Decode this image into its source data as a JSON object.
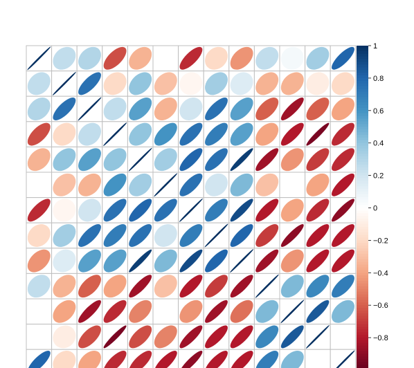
{
  "chart_data": {
    "type": "heatmap",
    "variant": "correlation-ellipse-matrix",
    "visible_rows": 13,
    "columns": 13,
    "diagonal_value": 1,
    "matrix": [
      [
        1.0,
        0.25,
        0.3,
        -0.65,
        -0.35,
        0.0,
        -0.75,
        -0.2,
        -0.45,
        0.25,
        0.05,
        0.35,
        0.8
      ],
      [
        0.25,
        1.0,
        0.75,
        -0.2,
        0.4,
        -0.3,
        -0.05,
        0.35,
        0.15,
        -0.35,
        -0.35,
        -0.1,
        -0.2
      ],
      [
        0.3,
        0.75,
        1.0,
        0.25,
        0.55,
        -0.35,
        0.2,
        0.75,
        0.55,
        -0.6,
        -0.85,
        -0.6,
        -0.4
      ],
      [
        -0.65,
        -0.2,
        0.25,
        1.0,
        0.4,
        0.6,
        0.75,
        0.7,
        0.55,
        -0.4,
        -0.8,
        -0.95,
        -0.75
      ],
      [
        -0.35,
        0.4,
        0.55,
        0.4,
        1.0,
        0.35,
        0.8,
        0.75,
        0.95,
        -0.85,
        -0.45,
        -0.7,
        -0.75
      ],
      [
        0.0,
        -0.3,
        -0.35,
        0.6,
        0.35,
        1.0,
        0.75,
        0.2,
        0.45,
        -0.3,
        0.0,
        -0.4,
        -0.8
      ],
      [
        -0.75,
        -0.05,
        0.2,
        0.75,
        0.8,
        0.75,
        1.0,
        0.7,
        0.9,
        -0.8,
        -0.4,
        -0.75,
        -0.9
      ],
      [
        -0.2,
        0.35,
        0.75,
        0.7,
        0.75,
        0.2,
        0.7,
        1.0,
        0.8,
        -0.7,
        -0.9,
        -0.8,
        -0.8
      ],
      [
        -0.45,
        0.15,
        0.55,
        0.55,
        0.95,
        0.45,
        0.9,
        0.8,
        1.0,
        -0.85,
        -0.45,
        -0.8,
        -0.8
      ],
      [
        0.25,
        -0.35,
        -0.6,
        -0.4,
        -0.85,
        -0.3,
        -0.8,
        -0.7,
        -0.85,
        1.0,
        0.45,
        0.65,
        0.7
      ],
      [
        0.0,
        -0.4,
        -0.85,
        -0.75,
        -0.5,
        0.0,
        -0.45,
        -0.85,
        -0.55,
        0.45,
        1.0,
        0.85,
        0.45
      ],
      [
        0.0,
        -0.1,
        -0.65,
        -0.95,
        -0.65,
        -0.5,
        -0.85,
        -0.8,
        -0.8,
        0.65,
        0.85,
        1.0,
        0.0
      ],
      [
        0.8,
        -0.2,
        -0.4,
        -0.75,
        -0.75,
        -0.8,
        -0.9,
        -0.8,
        -0.8,
        0.7,
        0.45,
        0.0,
        1.0
      ]
    ],
    "colorbar": {
      "range": [
        -1,
        1
      ],
      "tick_labels": [
        "1",
        "0.8",
        "0.6",
        "0.4",
        "0.2",
        "0",
        "−0.2",
        "−0.4",
        "−0.6",
        "−0.8"
      ],
      "tick_values": [
        1,
        0.8,
        0.6,
        0.4,
        0.2,
        0,
        -0.2,
        -0.4,
        -0.6,
        -0.8
      ]
    },
    "color_scale": [
      "#67001F",
      "#B2182B",
      "#D6604D",
      "#F4A582",
      "#FDDBC7",
      "#FFFFFF",
      "#D1E5F0",
      "#92C5DE",
      "#4393C3",
      "#2166AC",
      "#053061"
    ],
    "grid": true,
    "legend": "right",
    "title": "",
    "xlabel": "",
    "ylabel": ""
  }
}
